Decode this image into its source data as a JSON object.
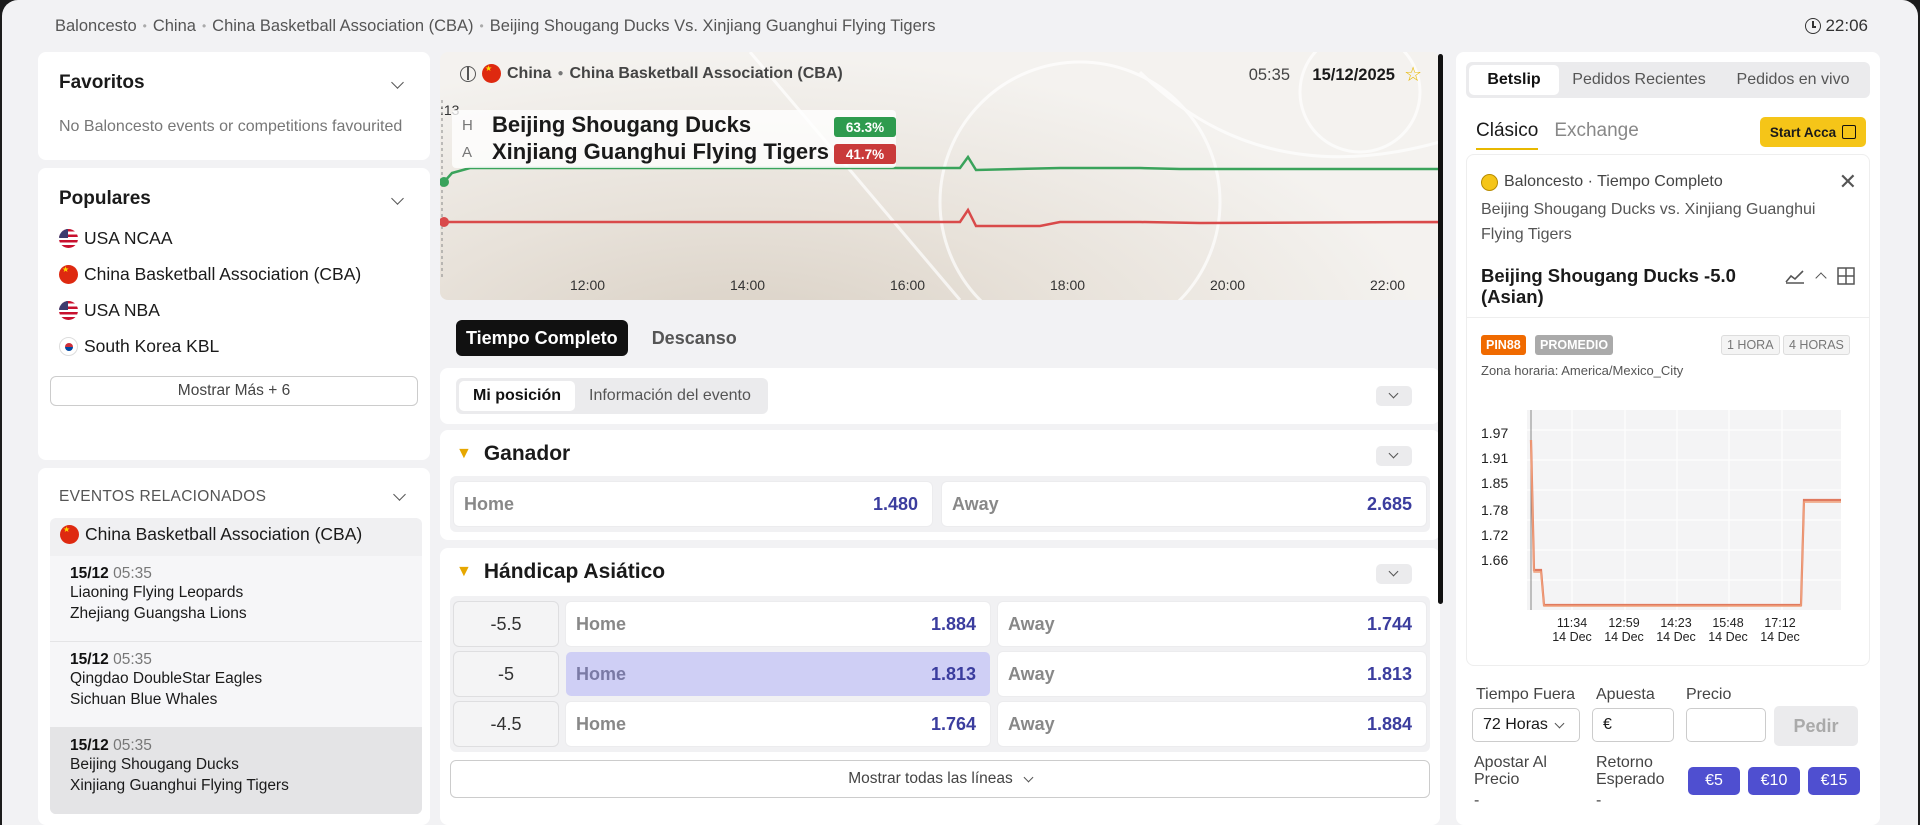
{
  "breadcrumb": [
    "Baloncesto",
    "China",
    "China Basketball Association (CBA)",
    "Beijing Shougang Ducks Vs. Xinjiang Guanghui Flying Tigers"
  ],
  "clock": "22:06",
  "favorites": {
    "title": "Favoritos",
    "empty_text": "No Baloncesto events or competitions favourited"
  },
  "popular": {
    "title": "Populares",
    "items": [
      {
        "label": "USA NCAA",
        "flag": "us"
      },
      {
        "label": "China Basketball Association (CBA)",
        "flag": "cn"
      },
      {
        "label": "USA NBA",
        "flag": "us"
      },
      {
        "label": "South Korea KBL",
        "flag": "kr"
      }
    ],
    "more_label": "Mostrar Más + 6"
  },
  "related": {
    "title": "EVENTOS RELACIONADOS",
    "competition": "China Basketball Association (CBA)",
    "events": [
      {
        "date": "15/12",
        "time": "05:35",
        "home": "Liaoning Flying Leopards",
        "away": "Zhejiang Guangsha Lions"
      },
      {
        "date": "15/12",
        "time": "05:35",
        "home": "Qingdao DoubleStar Eagles",
        "away": "Sichuan Blue Whales"
      },
      {
        "date": "15/12",
        "time": "05:35",
        "home": "Beijing Shougang Ducks",
        "away": "Xinjiang Guanghui Flying Tigers"
      }
    ]
  },
  "hero": {
    "country": "China",
    "competition": "China Basketball Association (CBA)",
    "time": "05:35",
    "date": "15/12/2025",
    "clip_label": ":13",
    "home_marker": "H",
    "away_marker": "A",
    "home": "Beijing Shougang Ducks",
    "away": "Xinjiang Guanghui Flying Tigers",
    "home_pct": "63.3%",
    "away_pct": "41.7%",
    "timeline_labels": [
      "12:00",
      "14:00",
      "16:00",
      "18:00",
      "20:00",
      "22:00"
    ],
    "colors": {
      "home": "#3aa35b",
      "away": "#d94a4a"
    }
  },
  "period_tabs": [
    "Tiempo Completo",
    "Descanso"
  ],
  "sub_tabs": [
    "Mi posición",
    "Información del evento"
  ],
  "winner_market": {
    "title": "Ganador",
    "home_label": "Home",
    "home_odds": "1.480",
    "away_label": "Away",
    "away_odds": "2.685"
  },
  "handicap_market": {
    "title": "Hándicap Asiático",
    "rows": [
      {
        "line": "-5.5",
        "home_label": "Home",
        "home_odds": "1.884",
        "away_label": "Away",
        "away_odds": "1.744"
      },
      {
        "line": "-5",
        "home_label": "Home",
        "home_odds": "1.813",
        "away_label": "Away",
        "away_odds": "1.813"
      },
      {
        "line": "-4.5",
        "home_label": "Home",
        "home_odds": "1.764",
        "away_label": "Away",
        "away_odds": "1.884"
      }
    ],
    "show_all": "Mostrar todas las líneas"
  },
  "betslip": {
    "tabs": [
      "Betslip",
      "Pedidos Recientes",
      "Pedidos en vivo"
    ],
    "types": [
      "Clásico",
      "Exchange"
    ],
    "start_acca": "Start Acca",
    "sport_line": "Baloncesto · Tiempo Completo",
    "match": "Beijing Shougang Ducks vs. Xinjiang Guanghui Flying Tigers",
    "selection": "Beijing Shougang Ducks -5.0 (Asian)",
    "badge_pin": "PIN88",
    "badge_avg": "PROMEDIO",
    "range_1h": "1 HORA",
    "range_4h": "4 HORAS",
    "timezone": "Zona horaria: America/Mexico_City",
    "chart_y_ticks": [
      "1.97",
      "1.91",
      "1.85",
      "1.78",
      "1.72",
      "1.66"
    ],
    "chart_x_ticks": [
      {
        "time": "11:34",
        "day": "14 Dec"
      },
      {
        "time": "12:59",
        "day": "14 Dec"
      },
      {
        "time": "14:23",
        "day": "14 Dec"
      },
      {
        "time": "15:48",
        "day": "14 Dec"
      },
      {
        "time": "17:12",
        "day": "14 Dec"
      }
    ],
    "timeout_label": "Tiempo Fuera",
    "timeout_value": "72 Horas",
    "stake_label": "Apuesta",
    "stake_currency": "€",
    "price_label": "Precio",
    "submit": "Pedir",
    "bet_at_price_label": "Apostar Al Precio",
    "bet_at_price_value": "-",
    "expected_return_label": "Retorno Esperado",
    "expected_return_value": "-",
    "quick_stakes": [
      "€5",
      "€10",
      "€15"
    ]
  }
}
